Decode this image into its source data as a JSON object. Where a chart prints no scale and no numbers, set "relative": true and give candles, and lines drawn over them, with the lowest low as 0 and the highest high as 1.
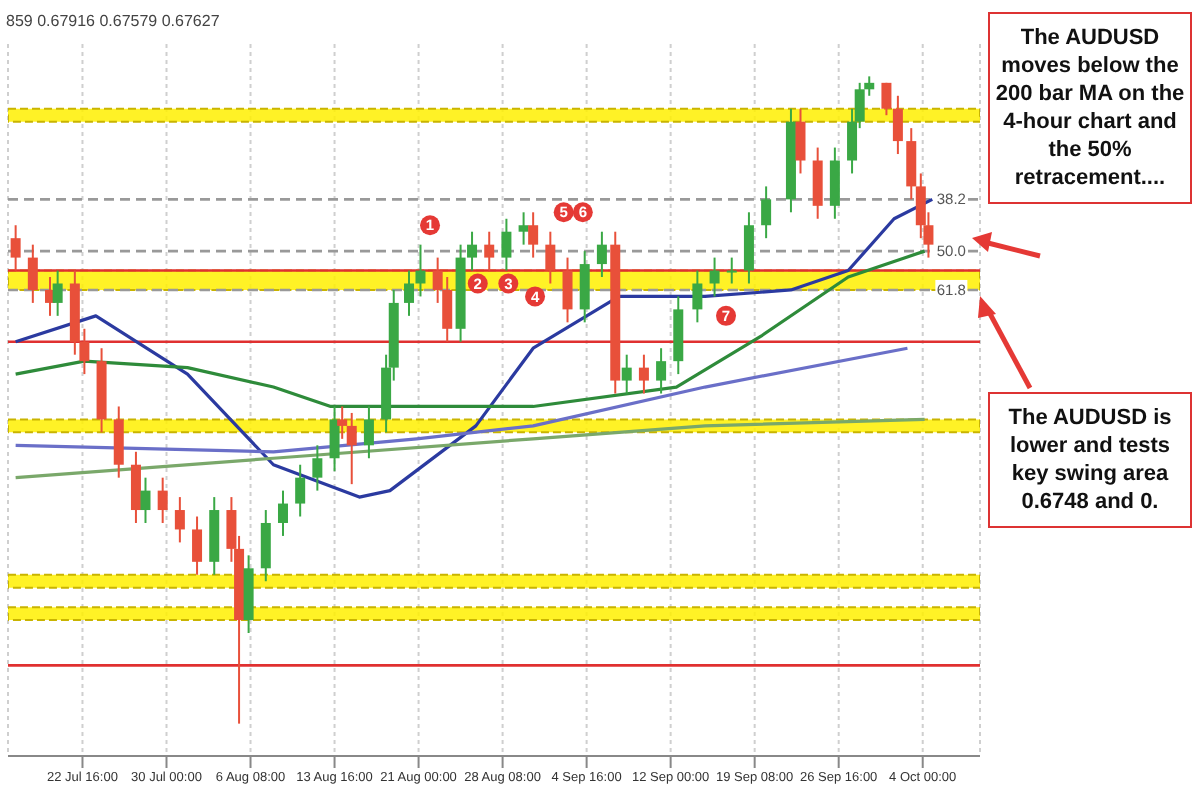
{
  "chart_data": {
    "type": "candlestick",
    "relative": true,
    "x": [
      "--07-16T20:00",
      "--07-18T08:00",
      "--07-19T20:00",
      "--07-20T12:00",
      "--07-22T00:00",
      "--07-22T20:00",
      "--07-24T08:00",
      "--07-25T20:00",
      "--07-27T08:00",
      "--07-28T04:00",
      "--07-29T16:00",
      "--07-31T04:00",
      "--08-01T16:00",
      "--08-03T04:00",
      "--08-04T16:00",
      "--08-05T08:00",
      "--08-06T04:00",
      "--08-07T16:00",
      "--08-09T04:00",
      "--08-10T16:00",
      "--08-12T04:00",
      "--08-13T16:00",
      "--08-14T08:00",
      "--08-15T04:00",
      "--08-16T16:00",
      "--08-18T04:00",
      "--08-18T20:00",
      "--08-20T04:00",
      "--08-21T04:00",
      "--08-22T16:00",
      "--08-23T12:00",
      "--08-24T16:00",
      "--08-25T16:00",
      "--08-27T04:00",
      "--08-28T16:00",
      "--08-30T04:00",
      "--08-31T00:00",
      "--09-01T12:00",
      "--09-03T00:00",
      "--09-04T12:00",
      "--09-06T00:00",
      "--09-07T04:00",
      "--09-08T04:00",
      "--09-09T16:00",
      "--09-11T04:00",
      "--09-12T16:00",
      "--09-14T08:00",
      "--09-15T20:00",
      "--09-17T08:00",
      "--09-18T20:00",
      "--09-20T08:00",
      "--09-22T12:00",
      "--09-23T08:00",
      "--09-24T20:00",
      "--09-26T08:00",
      "--09-27T20:00",
      "--09-28T12:00",
      "--09-29T08:00",
      "--09-30T20:00",
      "--10-01T20:00",
      "--10-03T00:00",
      "--10-03T20:00",
      "--10-04T12:00"
    ],
    "ohlc": [
      [
        0.75,
        0.77,
        0.7,
        0.72
      ],
      [
        0.72,
        0.74,
        0.65,
        0.67
      ],
      [
        0.67,
        0.69,
        0.63,
        0.65
      ],
      [
        0.65,
        0.7,
        0.63,
        0.68
      ],
      [
        0.68,
        0.7,
        0.57,
        0.59
      ],
      [
        0.59,
        0.61,
        0.54,
        0.56
      ],
      [
        0.56,
        0.58,
        0.45,
        0.47
      ],
      [
        0.47,
        0.49,
        0.38,
        0.4
      ],
      [
        0.4,
        0.42,
        0.31,
        0.33
      ],
      [
        0.33,
        0.38,
        0.31,
        0.36
      ],
      [
        0.36,
        0.38,
        0.31,
        0.33
      ],
      [
        0.33,
        0.35,
        0.28,
        0.3
      ],
      [
        0.3,
        0.32,
        0.23,
        0.25
      ],
      [
        0.25,
        0.35,
        0.23,
        0.33
      ],
      [
        0.33,
        0.35,
        0.25,
        0.27
      ],
      [
        0.27,
        0.29,
        0.0,
        0.16
      ],
      [
        0.16,
        0.26,
        0.14,
        0.24
      ],
      [
        0.24,
        0.33,
        0.22,
        0.31
      ],
      [
        0.31,
        0.36,
        0.29,
        0.34
      ],
      [
        0.34,
        0.4,
        0.32,
        0.38
      ],
      [
        0.38,
        0.43,
        0.36,
        0.41
      ],
      [
        0.41,
        0.49,
        0.39,
        0.47
      ],
      [
        0.47,
        0.49,
        0.44,
        0.46
      ],
      [
        0.46,
        0.48,
        0.37,
        0.43
      ],
      [
        0.43,
        0.49,
        0.41,
        0.47
      ],
      [
        0.47,
        0.57,
        0.45,
        0.55
      ],
      [
        0.55,
        0.67,
        0.53,
        0.65
      ],
      [
        0.65,
        0.7,
        0.63,
        0.68
      ],
      [
        0.68,
        0.74,
        0.66,
        0.7
      ],
      [
        0.7,
        0.72,
        0.65,
        0.67
      ],
      [
        0.67,
        0.69,
        0.59,
        0.61
      ],
      [
        0.61,
        0.74,
        0.59,
        0.72
      ],
      [
        0.72,
        0.76,
        0.7,
        0.74
      ],
      [
        0.74,
        0.76,
        0.7,
        0.72
      ],
      [
        0.72,
        0.78,
        0.7,
        0.76
      ],
      [
        0.76,
        0.79,
        0.74,
        0.77
      ],
      [
        0.77,
        0.79,
        0.72,
        0.74
      ],
      [
        0.74,
        0.76,
        0.68,
        0.7
      ],
      [
        0.7,
        0.72,
        0.62,
        0.64
      ],
      [
        0.64,
        0.73,
        0.62,
        0.71
      ],
      [
        0.71,
        0.76,
        0.69,
        0.74
      ],
      [
        0.74,
        0.76,
        0.51,
        0.53
      ],
      [
        0.53,
        0.57,
        0.51,
        0.55
      ],
      [
        0.55,
        0.57,
        0.51,
        0.53
      ],
      [
        0.53,
        0.58,
        0.51,
        0.56
      ],
      [
        0.56,
        0.66,
        0.54,
        0.64
      ],
      [
        0.64,
        0.7,
        0.62,
        0.68
      ],
      [
        0.68,
        0.72,
        0.66,
        0.7
      ],
      [
        0.7,
        0.72,
        0.68,
        0.7
      ],
      [
        0.7,
        0.79,
        0.68,
        0.77
      ],
      [
        0.77,
        0.83,
        0.75,
        0.81
      ],
      [
        0.81,
        0.95,
        0.79,
        0.93
      ],
      [
        0.93,
        0.95,
        0.85,
        0.87
      ],
      [
        0.87,
        0.89,
        0.78,
        0.8
      ],
      [
        0.8,
        0.89,
        0.78,
        0.87
      ],
      [
        0.87,
        0.95,
        0.85,
        0.93
      ],
      [
        0.93,
        0.99,
        0.92,
        0.98
      ],
      [
        0.98,
        1.0,
        0.97,
        0.99
      ],
      [
        0.99,
        0.99,
        0.94,
        0.95
      ],
      [
        0.95,
        0.97,
        0.88,
        0.9
      ],
      [
        0.9,
        0.92,
        0.81,
        0.83
      ],
      [
        0.83,
        0.85,
        0.75,
        0.77
      ],
      [
        0.77,
        0.79,
        0.72,
        0.74
      ]
    ],
    "colors": [
      "#e8503a",
      "#e8503a",
      "#e8503a",
      "#3aa845",
      "#e8503a",
      "#e8503a",
      "#e8503a",
      "#e8503a",
      "#e8503a",
      "#3aa845",
      "#e8503a",
      "#e8503a",
      "#e8503a",
      "#3aa845",
      "#e8503a",
      "#e8503a",
      "#3aa845",
      "#3aa845",
      "#3aa845",
      "#3aa845",
      "#3aa845",
      "#3aa845",
      "#e8503a",
      "#e8503a",
      "#3aa845",
      "#3aa845",
      "#3aa845",
      "#3aa845",
      "#3aa845",
      "#e8503a",
      "#e8503a",
      "#3aa845",
      "#3aa845",
      "#e8503a",
      "#3aa845",
      "#3aa845",
      "#e8503a",
      "#e8503a",
      "#e8503a",
      "#3aa845",
      "#3aa845",
      "#e8503a",
      "#3aa845",
      "#e8503a",
      "#3aa845",
      "#3aa845",
      "#3aa845",
      "#3aa845",
      "#3aa845",
      "#3aa845",
      "#3aa845",
      "#3aa845",
      "#e8503a",
      "#e8503a",
      "#3aa845",
      "#3aa845",
      "#3aa845",
      "#3aa845",
      "#e8503a",
      "#e8503a",
      "#e8503a",
      "#e8503a",
      "#e8503a"
    ],
    "series": [
      {
        "type": "line",
        "color": "#2b3aa0",
        "x": [
          "--07-16T20:00",
          "--07-23T20:00",
          "--07-31T20:00",
          "--08-08T08:00",
          "--08-15T20:00",
          "--08-18T12:00",
          "--08-26T00:00",
          "--08-31T00:00",
          "--09-07T12:00",
          "--09-15T00:00",
          "--09-22T12:00",
          "--09-27T12:00",
          "--10-01T12:00",
          "--10-04T20:00"
        ],
        "values": [
          0.59,
          0.63,
          0.54,
          0.4,
          0.35,
          0.36,
          0.46,
          0.58,
          0.66,
          0.66,
          0.67,
          0.7,
          0.78,
          0.81
        ]
      },
      {
        "type": "line",
        "color": "#2e8b3a",
        "x": [
          "--07-16T20:00",
          "--07-22T20:00",
          "--07-31T20:00",
          "--08-08T08:00",
          "--08-13T08:00",
          "--08-31T00:00",
          "--09-12T12:00",
          "--09-20T00:00",
          "--09-27T12:00",
          "--10-04T04:00"
        ],
        "values": [
          0.54,
          0.56,
          0.55,
          0.52,
          0.49,
          0.49,
          0.52,
          0.6,
          0.69,
          0.73
        ]
      },
      {
        "type": "line",
        "color": "#6a6fc8",
        "x": [
          "--07-16T20:00",
          "--08-08T08:00",
          "--08-20T20:00",
          "--08-31T00:00",
          "--09-15T00:00",
          "--10-02T16:00"
        ],
        "values": [
          0.43,
          0.42,
          0.44,
          0.46,
          0.52,
          0.58
        ]
      },
      {
        "type": "line",
        "color": "#7aa86a",
        "x": [
          "--07-16T20:00",
          "--08-08T08:00",
          "--08-31T00:00",
          "--09-15T00:00",
          "--10-04T04:00"
        ],
        "values": [
          0.38,
          0.41,
          0.44,
          0.46,
          0.47
        ]
      }
    ],
    "xlim": [
      "--07-16T04:00",
      "--10-09T00:00"
    ],
    "xticks": [
      {
        "value": "--07-22T16:00",
        "label": "22 Jul 16:00"
      },
      {
        "value": "--07-30T00:00",
        "label": "30 Jul 00:00"
      },
      {
        "value": "--08-06T08:00",
        "label": "6 Aug 08:00"
      },
      {
        "value": "--08-13T16:00",
        "label": "13 Aug 16:00"
      },
      {
        "value": "--08-21T00:00",
        "label": "21 Aug 00:00"
      },
      {
        "value": "--08-28T08:00",
        "label": "28 Aug 08:00"
      },
      {
        "value": "--09-04T16:00",
        "label": "4 Sep 16:00"
      },
      {
        "value": "--09-12T00:00",
        "label": "12 Sep 00:00"
      },
      {
        "value": "--09-19T08:00",
        "label": "19 Sep 08:00"
      },
      {
        "value": "--09-26T16:00",
        "label": "26 Sep 16:00"
      },
      {
        "value": "--10-04T00:00",
        "label": "4 Oct 00:00"
      }
    ],
    "grid": "x",
    "bands": [
      {
        "axis": "y",
        "from": 0.67,
        "to": 0.7,
        "color": "#fff000"
      },
      {
        "axis": "y",
        "from": 0.93,
        "to": 0.95,
        "color": "#fff000"
      },
      {
        "axis": "y",
        "from": 0.45,
        "to": 0.47,
        "color": "#fff000"
      },
      {
        "axis": "y",
        "from": 0.21,
        "to": 0.23,
        "color": "#fff000"
      },
      {
        "axis": "y",
        "from": 0.16,
        "to": 0.18,
        "color": "#fff000"
      }
    ],
    "ref_lines": [
      {
        "axis": "y",
        "value": 0.7,
        "color": "#e03030",
        "line_style": "solid"
      },
      {
        "axis": "y",
        "value": 0.59,
        "color": "#e03030",
        "line_style": "solid"
      },
      {
        "axis": "y",
        "value": 0.09,
        "color": "#e03030",
        "line_style": "solid"
      },
      {
        "axis": "y",
        "value": 0.81,
        "color": "#999999",
        "line_style": "dashed"
      },
      {
        "axis": "y",
        "value": 0.73,
        "color": "#999999",
        "line_style": "dashed"
      },
      {
        "axis": "y",
        "value": 0.67,
        "color": "#999999",
        "line_style": "dashed"
      }
    ],
    "annotations": [
      "859 0.67916 0.67579 0.67627",
      "The AUDUSD moves below the 200 bar MA on the 4-hour chart and the 50% retracement....",
      "The AUDUSD is lower and tests key swing area 0.6748 and 0.",
      {
        "text": "1",
        "x": "--08-22T00:00",
        "y": 0.77
      },
      {
        "text": "2",
        "x": "--08-26T04:00",
        "y": 0.68
      },
      {
        "text": "3",
        "x": "--08-28T20:00",
        "y": 0.68
      },
      {
        "text": "4",
        "x": "--08-31T04:00",
        "y": 0.66
      },
      {
        "text": "5",
        "x": "--09-02T16:00",
        "y": 0.79
      },
      {
        "text": "6",
        "x": "--09-04T08:00",
        "y": 0.79
      },
      {
        "text": "7",
        "x": "--09-16T20:00",
        "y": 0.63
      },
      {
        "text": "38.2",
        "x": "--10-06T12:00",
        "y": 0.81
      },
      {
        "text": "50.0",
        "x": "--10-06T12:00",
        "y": 0.73
      },
      {
        "text": "61.8",
        "x": "--10-06T12:00",
        "y": 0.67
      }
    ]
  }
}
